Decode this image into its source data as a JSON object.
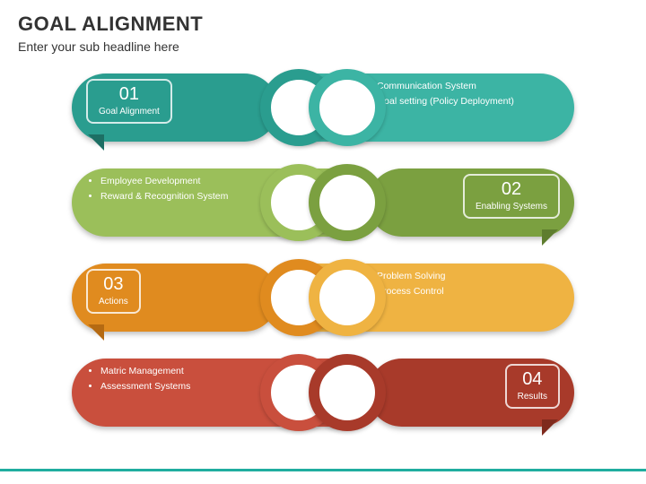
{
  "header": {
    "title": "GOAL ALIGNMENT",
    "subtitle": "Enter your sub headline here"
  },
  "accent_color": "#1fad9f",
  "rows": [
    {
      "direction": "left",
      "number": "01",
      "number_label": "Goal Alignment",
      "bullets": [
        "Communication System",
        "Goal setting (Policy Deployment)"
      ],
      "pill_left_color": "#2a9d8f",
      "pill_right_color": "#3cb4a4",
      "ring_left_color": "#2a9d8f",
      "ring_right_color": "#3cb4a4",
      "tail_color": "#1d6f64"
    },
    {
      "direction": "right",
      "number": "02",
      "number_label": "Enabling Systems",
      "bullets": [
        "Employee Development",
        "Reward & Recognition System"
      ],
      "pill_left_color": "#9bbf5a",
      "pill_right_color": "#7ba040",
      "ring_left_color": "#9bbf5a",
      "ring_right_color": "#7ba040",
      "tail_color": "#5e7d2e"
    },
    {
      "direction": "left",
      "number": "03",
      "number_label": "Actions",
      "bullets": [
        "Problem Solving",
        "Process Control"
      ],
      "pill_left_color": "#e08b1f",
      "pill_right_color": "#efb342",
      "ring_left_color": "#e08b1f",
      "ring_right_color": "#efb342",
      "tail_color": "#b56a12"
    },
    {
      "direction": "right",
      "number": "04",
      "number_label": "Results",
      "bullets": [
        "Matric Management",
        "Assessment Systems"
      ],
      "pill_left_color": "#c94f3d",
      "pill_right_color": "#a83a2a",
      "ring_left_color": "#c94f3d",
      "ring_right_color": "#a83a2a",
      "tail_color": "#7f2a1d"
    }
  ]
}
